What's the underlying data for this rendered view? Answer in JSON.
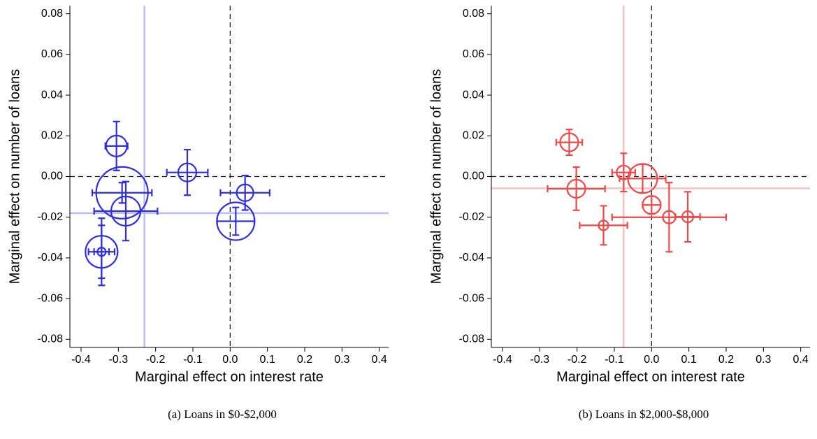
{
  "chart_data": [
    {
      "type": "scatter",
      "caption": "(a)  Loans in $0-$2,000",
      "xlabel": "Marginal effect on interest rate",
      "ylabel": "Marginal effect on number of loans",
      "xlim": [
        -0.43,
        0.425
      ],
      "ylim": [
        -0.084,
        0.084
      ],
      "xticks": [
        -0.4,
        -0.3,
        -0.2,
        -0.1,
        {
          "value": 0,
          "label": "0.0"
        },
        0.1,
        0.2,
        0.3,
        0.4
      ],
      "yticks": [
        -0.08,
        -0.06,
        -0.04,
        -0.02,
        {
          "value": 0,
          "label": "0.00"
        },
        0.02,
        0.04,
        0.06,
        0.08
      ],
      "color": "#2f2fe0",
      "ref_color": "#b8bdf2",
      "vline": -0.23,
      "hline": -0.018,
      "x": [
        -0.305,
        -0.115,
        0.04,
        0.015,
        -0.29,
        -0.28,
        -0.345,
        -0.345
      ],
      "y": [
        0.015,
        0.002,
        -0.008,
        -0.022,
        -0.008,
        -0.017,
        -0.037,
        -0.037
      ],
      "xerr": [
        0.03,
        0.055,
        0.066,
        0.05,
        0.08,
        0.085,
        0.035,
        0.02
      ],
      "yerr": [
        0.012,
        0.0112,
        0.0085,
        0.0068,
        0.005,
        0.0145,
        0.0165,
        0.013
      ],
      "size": [
        15,
        13,
        12,
        27,
        37,
        21,
        6,
        23
      ]
    },
    {
      "type": "scatter",
      "caption": "(b)  Loans in $2,000-$8,000",
      "xlabel": "Marginal effect on interest rate",
      "ylabel": "Marginal effect on number of loans",
      "xlim": [
        -0.43,
        0.425
      ],
      "ylim": [
        -0.084,
        0.084
      ],
      "xticks": [
        -0.4,
        -0.3,
        -0.2,
        -0.1,
        {
          "value": 0,
          "label": "0.0"
        },
        0.1,
        0.2,
        0.3,
        0.4
      ],
      "yticks": [
        -0.08,
        -0.06,
        -0.04,
        -0.02,
        {
          "value": 0,
          "label": "0.00"
        },
        0.02,
        0.04,
        0.06,
        0.08
      ],
      "color": "#f04848",
      "ref_color": "#f7c2c2",
      "vline": -0.075,
      "hline": -0.0058,
      "x": [
        -0.221,
        -0.075,
        -0.024,
        -0.202,
        0.0,
        0.047,
        0.097,
        -0.129
      ],
      "y": [
        0.0168,
        0.002,
        -0.001,
        -0.006,
        -0.014,
        -0.02,
        -0.0198,
        -0.024
      ],
      "xerr": [
        0.035,
        0.031,
        0.062,
        0.077,
        0.024,
        0.153,
        0.033,
        0.064
      ],
      "yerr": [
        0.0063,
        0.0094,
        0.007,
        0.0106,
        0.0043,
        0.017,
        0.0123,
        0.0096
      ],
      "size": [
        13,
        10,
        21,
        13,
        13,
        9,
        8,
        7
      ]
    }
  ]
}
